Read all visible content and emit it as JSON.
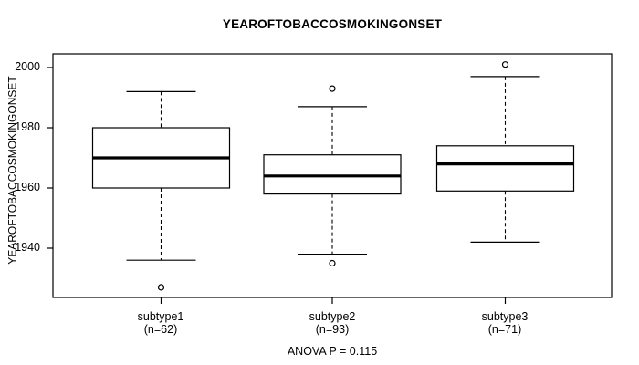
{
  "chart_data": {
    "type": "boxplot",
    "title": "YEAROFTOBACCOSMOKINGONSET",
    "ylabel": "YEAROFTOBACCOSMOKINGONSET",
    "footer": "ANOVA P = 0.115",
    "anova_p": 0.115,
    "yticks": [
      2000,
      1980,
      1960,
      1940
    ],
    "ylim": [
      1924,
      2004
    ],
    "grid": false,
    "legend": "none",
    "line_color": "#000000",
    "box_fill": "#ffffff",
    "groups": [
      {
        "label": "subtype1",
        "n_label": "(n=62)",
        "n": 62,
        "stats": {
          "whisker_low": 1936,
          "q1": 1960,
          "median": 1970,
          "q3": 1980,
          "whisker_high": 1992
        },
        "outliers": [
          1927
        ]
      },
      {
        "label": "subtype2",
        "n_label": "(n=93)",
        "n": 93,
        "stats": {
          "whisker_low": 1938,
          "q1": 1958,
          "median": 1964,
          "q3": 1971,
          "whisker_high": 1987
        },
        "outliers": [
          1993,
          1935
        ]
      },
      {
        "label": "subtype3",
        "n_label": "(n=71)",
        "n": 71,
        "stats": {
          "whisker_low": 1942,
          "q1": 1959,
          "median": 1968,
          "q3": 1974,
          "whisker_high": 1997
        },
        "outliers": [
          2001
        ]
      }
    ]
  }
}
